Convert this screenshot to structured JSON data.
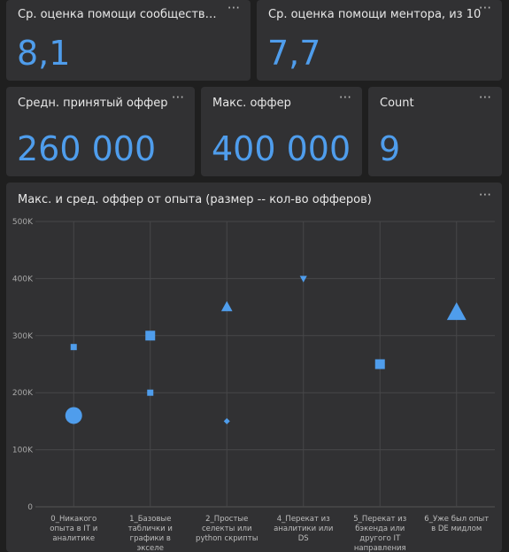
{
  "kpis": [
    {
      "title": "Ср. оценка помощи сообщества, и...",
      "value": "8,1"
    },
    {
      "title": "Ср. оценка помощи ментора, из 10",
      "value": "7,7"
    },
    {
      "title": "Средн. принятый оффер",
      "value": "260 000"
    },
    {
      "title": "Макс. оффер",
      "value": "400 000"
    },
    {
      "title": "Count",
      "value": "9"
    }
  ],
  "menu_glyph": "···",
  "chart_title": "Макс. и сред. оффер от опыта (размер -- кол-во офферов)",
  "colors": {
    "accent": "#4f9dec",
    "card": "#313133",
    "background": "#1f1f1f"
  },
  "chart_data": {
    "type": "scatter",
    "title": "Макс. и сред. оффер от опыта (размер -- кол-во офферов)",
    "xlabel": "",
    "ylabel": "",
    "ylim": [
      0,
      500000
    ],
    "y_ticks": [
      "0",
      "100K",
      "200K",
      "300K",
      "400K",
      "500K"
    ],
    "y_tick_values": [
      0,
      100000,
      200000,
      300000,
      400000,
      500000
    ],
    "grid": true,
    "categories": [
      [
        "0_Никакого",
        "опыта в IT и",
        "аналитике"
      ],
      [
        "1_Базовые",
        "таблички и",
        "графики в",
        "экселе"
      ],
      [
        "2_Простые",
        "селекты или",
        "python скрипты"
      ],
      [
        "4_Перекат из",
        "аналитики или",
        "DS"
      ],
      [
        "5_Перекат из",
        "бэкенда или",
        "другого IT",
        "направления"
      ],
      [
        "6_Уже был опыт",
        "в DE мидлом"
      ]
    ],
    "points": [
      {
        "category": 0,
        "y": 280000,
        "shape": "square",
        "size": "small"
      },
      {
        "category": 0,
        "y": 160000,
        "shape": "circle",
        "size": "large"
      },
      {
        "category": 1,
        "y": 300000,
        "shape": "square",
        "size": "medium"
      },
      {
        "category": 1,
        "y": 200000,
        "shape": "square",
        "size": "small"
      },
      {
        "category": 2,
        "y": 350000,
        "shape": "triangle",
        "size": "medium"
      },
      {
        "category": 2,
        "y": 150000,
        "shape": "diamond",
        "size": "small"
      },
      {
        "category": 3,
        "y": 400000,
        "shape": "triangle-down",
        "size": "small"
      },
      {
        "category": 4,
        "y": 250000,
        "shape": "square",
        "size": "medium"
      },
      {
        "category": 5,
        "y": 340000,
        "shape": "triangle",
        "size": "large"
      }
    ]
  }
}
